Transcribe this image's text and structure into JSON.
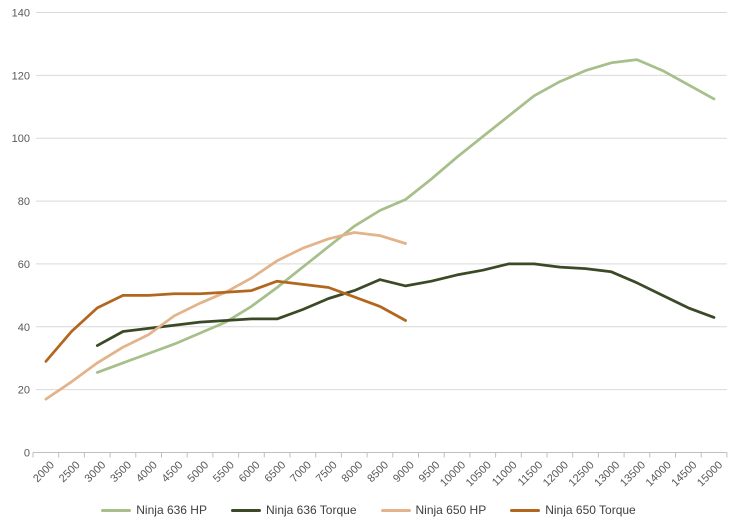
{
  "chart_data": {
    "type": "line",
    "title": "",
    "xlabel": "",
    "ylabel": "",
    "ylim": [
      0,
      140
    ],
    "ytick_step": 20,
    "y_tick_labels": [
      "0",
      "20",
      "40",
      "60",
      "80",
      "100",
      "120",
      "140"
    ],
    "x_categories": [
      2000,
      2500,
      3000,
      3500,
      4000,
      4500,
      5000,
      5500,
      6000,
      6500,
      7000,
      7500,
      8000,
      8500,
      9000,
      9500,
      10000,
      10500,
      11000,
      11500,
      12000,
      12500,
      13000,
      13500,
      14000,
      14500,
      15000
    ],
    "x_tick_labels": [
      "2000",
      "2500",
      "3000",
      "3500",
      "4000",
      "4500",
      "5000",
      "5500",
      "6000",
      "6500",
      "7000",
      "7500",
      "8000",
      "8500",
      "9000",
      "9500",
      "10000",
      "10500",
      "11000",
      "11500",
      "12000",
      "12500",
      "13000",
      "13500",
      "14000",
      "14500",
      "15000"
    ],
    "grid": "horizontal",
    "legend_position": "bottom",
    "colors": {
      "axis": "#bfbfbf",
      "grid": "#d9d9d9",
      "tick_label": "#595959",
      "legend_text": "#3f3f3f"
    },
    "series": [
      {
        "name": "Ninja 636 HP",
        "color": "#a7bf8a",
        "points": [
          [
            3000,
            25.5
          ],
          [
            3500,
            28.5
          ],
          [
            4000,
            31.5
          ],
          [
            4500,
            34.5
          ],
          [
            5000,
            38
          ],
          [
            5500,
            41.5
          ],
          [
            6000,
            46.5
          ],
          [
            6500,
            52.5
          ],
          [
            7000,
            59
          ],
          [
            7500,
            65.5
          ],
          [
            8000,
            72
          ],
          [
            8500,
            77
          ],
          [
            9000,
            80.5
          ],
          [
            9500,
            87
          ],
          [
            10000,
            94
          ],
          [
            10500,
            100.5
          ],
          [
            11000,
            107
          ],
          [
            11500,
            113.5
          ],
          [
            12000,
            118
          ],
          [
            12500,
            121.5
          ],
          [
            13000,
            124
          ],
          [
            13500,
            125
          ],
          [
            14000,
            121.5
          ],
          [
            14500,
            117
          ],
          [
            15000,
            112.5
          ]
        ]
      },
      {
        "name": "Ninja 636 Torque",
        "color": "#3b4a26",
        "points": [
          [
            3000,
            34
          ],
          [
            3500,
            38.5
          ],
          [
            4000,
            39.5
          ],
          [
            4500,
            40.5
          ],
          [
            5000,
            41.5
          ],
          [
            5500,
            42
          ],
          [
            6000,
            42.5
          ],
          [
            6500,
            42.5
          ],
          [
            7000,
            45.5
          ],
          [
            7500,
            49
          ],
          [
            8000,
            51.5
          ],
          [
            8500,
            55
          ],
          [
            9000,
            53
          ],
          [
            9500,
            54.5
          ],
          [
            10000,
            56.5
          ],
          [
            10500,
            58
          ],
          [
            11000,
            60
          ],
          [
            11500,
            60
          ],
          [
            12000,
            59
          ],
          [
            12500,
            58.5
          ],
          [
            13000,
            57.5
          ],
          [
            13500,
            54
          ],
          [
            14000,
            50
          ],
          [
            14500,
            46
          ],
          [
            15000,
            43
          ]
        ]
      },
      {
        "name": "Ninja 650 HP",
        "color": "#e3b38b",
        "points": [
          [
            2000,
            17
          ],
          [
            2500,
            22.5
          ],
          [
            3000,
            28.5
          ],
          [
            3500,
            33.5
          ],
          [
            4000,
            37.5
          ],
          [
            4500,
            43.5
          ],
          [
            5000,
            47.5
          ],
          [
            5500,
            51
          ],
          [
            6000,
            55.5
          ],
          [
            6500,
            61
          ],
          [
            7000,
            65
          ],
          [
            7500,
            68
          ],
          [
            8000,
            70
          ],
          [
            8500,
            69
          ],
          [
            9000,
            66.5
          ]
        ]
      },
      {
        "name": "Ninja 650 Torque",
        "color": "#b2671f",
        "points": [
          [
            2000,
            29
          ],
          [
            2500,
            38.5
          ],
          [
            3000,
            46
          ],
          [
            3500,
            50
          ],
          [
            4000,
            50
          ],
          [
            4500,
            50.5
          ],
          [
            5000,
            50.5
          ],
          [
            5500,
            51
          ],
          [
            6000,
            51.5
          ],
          [
            6500,
            54.5
          ],
          [
            7000,
            53.5
          ],
          [
            7500,
            52.5
          ],
          [
            8000,
            49.5
          ],
          [
            8500,
            46.5
          ],
          [
            9000,
            42
          ]
        ]
      }
    ]
  }
}
